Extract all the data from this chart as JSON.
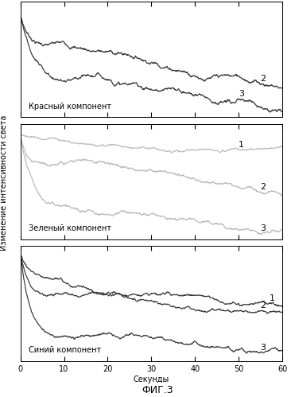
{
  "title": "ФИГ.3",
  "xlabel": "Секунды",
  "ylabel": "Изменение интенсивности света",
  "panel_labels": [
    "Красный компонент",
    "Зеленый компонент",
    "Синий компонент"
  ],
  "dark_color": "#383838",
  "light_color": "#b8b8b8",
  "bg_color": "#ffffff",
  "font_size": 7,
  "title_font_size": 9,
  "number_font_size": 8,
  "lw": 0.85
}
